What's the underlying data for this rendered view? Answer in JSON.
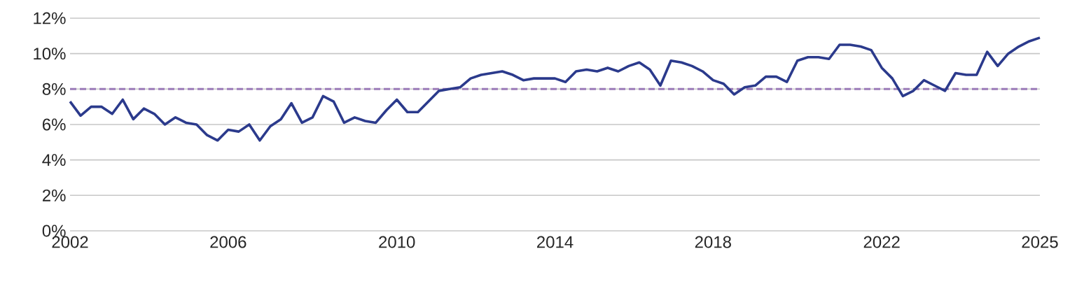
{
  "chart_data": {
    "type": "line",
    "categories": [
      "2002",
      null,
      null,
      null,
      null,
      null,
      null,
      null,
      null,
      null,
      null,
      null,
      null,
      null,
      null,
      "2006",
      null,
      null,
      null,
      null,
      null,
      null,
      null,
      null,
      null,
      null,
      null,
      null,
      null,
      null,
      null,
      "2010",
      null,
      null,
      null,
      null,
      null,
      null,
      null,
      null,
      null,
      null,
      null,
      null,
      null,
      null,
      "2014",
      null,
      null,
      null,
      null,
      null,
      null,
      null,
      null,
      null,
      null,
      null,
      null,
      null,
      null,
      "2018",
      null,
      null,
      null,
      null,
      null,
      null,
      null,
      null,
      null,
      null,
      null,
      null,
      null,
      null,
      null,
      "2022",
      null,
      null,
      null,
      null,
      null,
      null,
      null,
      null,
      null,
      null,
      null,
      null,
      null,
      null,
      "2025"
    ],
    "series": [
      {
        "color": "#2b3a8c",
        "values": [
          7.3,
          6.5,
          7.0,
          7.0,
          6.6,
          7.4,
          6.3,
          6.9,
          6.6,
          6.0,
          6.4,
          6.1,
          6.0,
          5.4,
          5.1,
          5.7,
          5.6,
          6.0,
          5.1,
          5.9,
          6.3,
          7.2,
          6.1,
          6.4,
          7.6,
          7.3,
          6.1,
          6.4,
          6.2,
          6.1,
          6.8,
          7.4,
          6.7,
          6.7,
          7.3,
          7.9,
          8.0,
          8.1,
          8.6,
          8.8,
          8.9,
          9.0,
          8.8,
          8.5,
          8.6,
          8.6,
          8.6,
          8.4,
          9.0,
          9.1,
          9.0,
          9.2,
          9.0,
          9.3,
          9.5,
          9.1,
          8.2,
          9.6,
          9.5,
          9.3,
          9.0,
          8.5,
          8.3,
          7.7,
          8.1,
          8.2,
          8.7,
          8.7,
          8.4,
          9.6,
          9.8,
          9.8,
          9.7,
          10.5,
          10.5,
          10.4,
          10.2,
          9.2,
          8.6,
          7.6,
          7.9,
          8.5,
          8.2,
          7.9,
          8.9,
          8.8,
          8.8,
          10.1,
          9.3,
          10.0,
          10.4,
          10.7,
          10.9
        ]
      }
    ],
    "ylim": [
      0,
      12
    ],
    "yticks": [
      {
        "value": 0,
        "label": "0%"
      },
      {
        "value": 2,
        "label": "2%"
      },
      {
        "value": 4,
        "label": "4%"
      },
      {
        "value": 6,
        "label": "6%"
      },
      {
        "value": 8,
        "label": "8%"
      },
      {
        "value": 10,
        "label": "10%"
      },
      {
        "value": 12,
        "label": "12%"
      }
    ],
    "ref_lines": [
      {
        "axis": "y",
        "value": 8,
        "color": "#9b7bb8",
        "line_style": "dashed"
      }
    ],
    "grid": "y",
    "marker": "none",
    "line_style": "solid"
  }
}
